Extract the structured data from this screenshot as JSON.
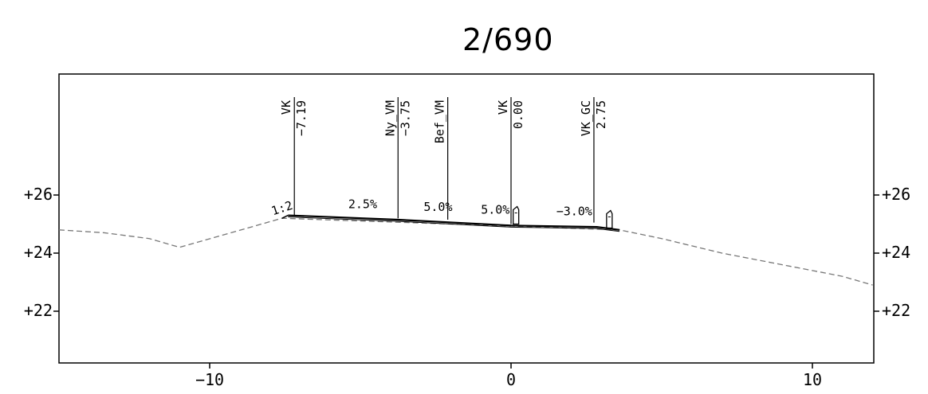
{
  "title": "2/690",
  "axes": {
    "x_range": [
      -15,
      12
    ],
    "y_range": [
      20.5,
      27
    ],
    "x_ticks": [
      {
        "value": -10,
        "label": "−10"
      },
      {
        "value": 0,
        "label": "0"
      },
      {
        "value": 10,
        "label": "10"
      }
    ],
    "y_ticks": [
      {
        "value": 26,
        "label": "+26"
      },
      {
        "value": 24,
        "label": "+24"
      },
      {
        "value": 22,
        "label": "+22"
      }
    ]
  },
  "ground_line": [
    [
      -15,
      24.8
    ],
    [
      -13.5,
      24.7
    ],
    [
      -12,
      24.5
    ],
    [
      -11,
      24.2
    ],
    [
      -7.6,
      25.2
    ],
    [
      3.6,
      24.8
    ],
    [
      5,
      24.5
    ],
    [
      7,
      24.0
    ],
    [
      9,
      23.6
    ],
    [
      11,
      23.2
    ],
    [
      12,
      22.9
    ]
  ],
  "road_surface": [
    [
      -7.4,
      25.3
    ],
    [
      -3.75,
      25.15
    ],
    [
      0,
      24.95
    ],
    [
      2.85,
      24.9
    ],
    [
      3.6,
      24.8
    ]
  ],
  "markers": [
    {
      "id": "vk-left",
      "name": "VK",
      "offset": "−7.19",
      "x": -7.19,
      "top": 27.2,
      "bottom": 25.3
    },
    {
      "id": "ny-vm",
      "name": "Ny_VM",
      "offset": "−3.75",
      "x": -3.75,
      "top": 27.2,
      "bottom": 25.2
    },
    {
      "id": "bef-vm",
      "name": "Bef_VM",
      "offset": "",
      "x": -2.1,
      "top": 27.2,
      "bottom": 25.15
    },
    {
      "id": "vk-center",
      "name": "VK",
      "offset": "0.00",
      "x": 0.0,
      "top": 27.2,
      "bottom": 25.0
    },
    {
      "id": "vk-gc",
      "name": "VK_GC",
      "offset": "2.75",
      "x": 2.75,
      "top": 27.2,
      "bottom": 25.05
    }
  ],
  "curbs": [
    {
      "id": "curb-center",
      "x": 0.15
    },
    {
      "id": "curb-right",
      "x": 3.25
    }
  ],
  "slope_labels": [
    {
      "id": "slope-side",
      "text": "1:2",
      "x": -7.9,
      "y": 25.3
    },
    {
      "id": "slope-1",
      "text": "2.5%",
      "x": -5.4,
      "y": 25.55
    },
    {
      "id": "slope-2",
      "text": "5.0%",
      "x": -2.9,
      "y": 25.45
    },
    {
      "id": "slope-3",
      "text": "5.0%",
      "x": -1.0,
      "y": 25.35
    },
    {
      "id": "slope-4",
      "text": "−3.0%",
      "x": 1.5,
      "y": 25.3
    }
  ]
}
